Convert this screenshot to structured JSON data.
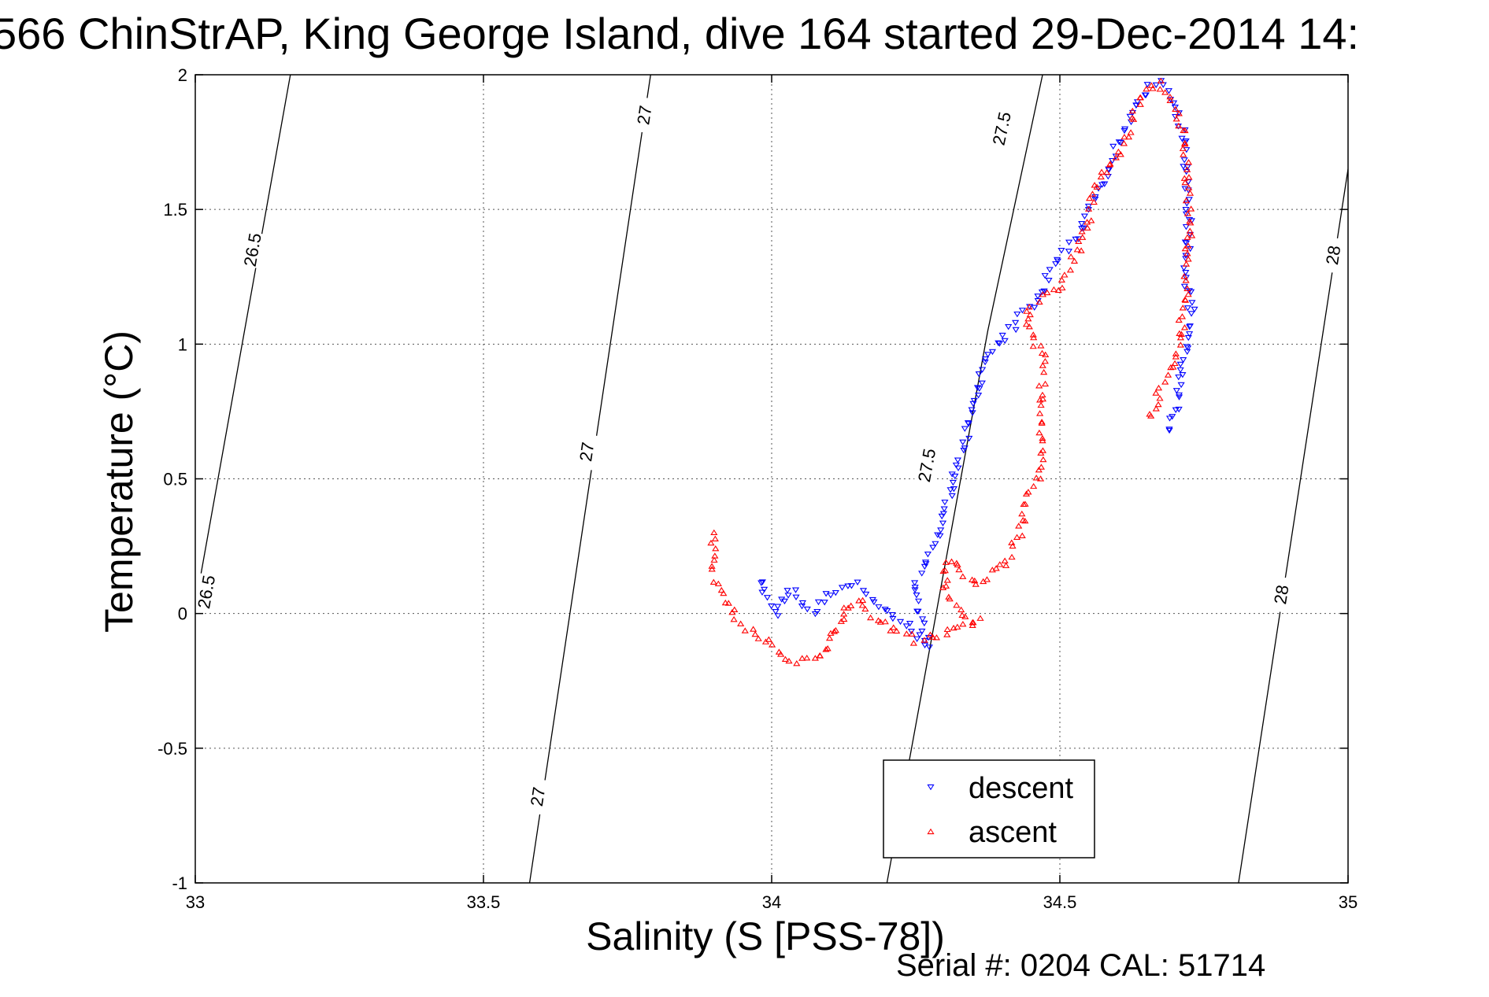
{
  "chart_data": {
    "type": "scatter",
    "title": "566 ChinStrAP, King George Island, dive 164 started 29-Dec-2014 14:",
    "xlabel": "Salinity (S [PSS-78])",
    "ylabel": "Temperature (°C)",
    "xlim": [
      33,
      35
    ],
    "ylim": [
      -1,
      2
    ],
    "xticks": [
      "33",
      "33.5",
      "34",
      "34.5",
      "35"
    ],
    "yticks": [
      "-1",
      "-0.5",
      "0",
      "0.5",
      "1",
      "1.5",
      "2"
    ],
    "grid": true,
    "legend_position": "bottom-right",
    "footer": "Serial #: 0204  CAL: 51714",
    "isopycnals": [
      {
        "label": "26.5",
        "points": [
          [
            32.985,
            -0.15
          ],
          [
            33.165,
            2.0
          ]
        ],
        "label_at": [
          [
            33.1,
            1.35
          ],
          [
            33.02,
            0.08
          ]
        ]
      },
      {
        "label": "27",
        "points": [
          [
            33.58,
            -1.0
          ],
          [
            33.79,
            2.0
          ]
        ],
        "label_at": [
          [
            33.78,
            1.85
          ],
          [
            33.68,
            0.6
          ],
          [
            33.595,
            -0.68
          ]
        ]
      },
      {
        "label": "27.5",
        "points": [
          [
            34.2,
            -1.0
          ],
          [
            34.375,
            1.05
          ],
          [
            34.47,
            2.0
          ]
        ],
        "label_at": [
          [
            34.4,
            1.8
          ],
          [
            34.27,
            0.55
          ]
        ]
      },
      {
        "label": "28",
        "points": [
          [
            34.81,
            -1.0
          ],
          [
            35.0,
            1.65
          ]
        ],
        "label_at": [
          [
            34.975,
            1.33
          ],
          [
            34.885,
            0.07
          ]
        ]
      }
    ],
    "series": [
      {
        "name": "descent",
        "color": "#0000ff",
        "marker": "triangle-down",
        "path": [
          [
            33.98,
            0.12
          ],
          [
            33.99,
            0.05
          ],
          [
            34.01,
            0.0
          ],
          [
            34.03,
            0.09
          ],
          [
            34.05,
            0.05
          ],
          [
            34.07,
            0.0
          ],
          [
            34.1,
            0.08
          ],
          [
            34.13,
            0.11
          ],
          [
            34.16,
            0.1
          ],
          [
            34.2,
            0.0
          ],
          [
            34.24,
            -0.05
          ],
          [
            34.27,
            -0.13
          ],
          [
            34.25,
            0.1
          ],
          [
            34.27,
            0.2
          ],
          [
            34.29,
            0.3
          ],
          [
            34.31,
            0.45
          ],
          [
            34.33,
            0.6
          ],
          [
            34.35,
            0.75
          ],
          [
            34.37,
            0.95
          ],
          [
            34.4,
            1.02
          ],
          [
            34.43,
            1.1
          ],
          [
            34.46,
            1.15
          ],
          [
            34.48,
            1.25
          ],
          [
            34.5,
            1.32
          ],
          [
            34.53,
            1.4
          ],
          [
            34.55,
            1.5
          ],
          [
            34.57,
            1.57
          ],
          [
            34.59,
            1.68
          ],
          [
            34.61,
            1.78
          ],
          [
            34.63,
            1.88
          ],
          [
            34.65,
            1.94
          ],
          [
            34.67,
            1.97
          ],
          [
            34.69,
            1.92
          ],
          [
            34.71,
            1.82
          ],
          [
            34.72,
            1.65
          ],
          [
            34.725,
            1.45
          ],
          [
            34.72,
            1.25
          ],
          [
            34.73,
            1.1
          ],
          [
            34.72,
            0.98
          ],
          [
            34.705,
            0.85
          ],
          [
            34.7,
            0.75
          ],
          [
            34.69,
            0.68
          ]
        ]
      },
      {
        "name": "ascent",
        "color": "#ff0000",
        "marker": "triangle-up",
        "path": [
          [
            34.66,
            0.73
          ],
          [
            34.67,
            0.82
          ],
          [
            34.69,
            0.9
          ],
          [
            34.7,
            0.96
          ],
          [
            34.71,
            1.05
          ],
          [
            34.72,
            1.22
          ],
          [
            34.725,
            1.45
          ],
          [
            34.72,
            1.65
          ],
          [
            34.71,
            1.82
          ],
          [
            34.69,
            1.92
          ],
          [
            34.67,
            1.97
          ],
          [
            34.65,
            1.94
          ],
          [
            34.63,
            1.86
          ],
          [
            34.61,
            1.76
          ],
          [
            34.6,
            1.7
          ],
          [
            34.58,
            1.64
          ],
          [
            34.56,
            1.6
          ],
          [
            34.55,
            1.45
          ],
          [
            34.54,
            1.4
          ],
          [
            34.52,
            1.3
          ],
          [
            34.5,
            1.22
          ],
          [
            34.47,
            1.17
          ],
          [
            34.45,
            1.15
          ],
          [
            34.44,
            1.08
          ],
          [
            34.47,
            0.95
          ],
          [
            34.47,
            0.7
          ],
          [
            34.47,
            0.55
          ],
          [
            34.45,
            0.45
          ],
          [
            34.43,
            0.3
          ],
          [
            34.41,
            0.2
          ],
          [
            34.38,
            0.15
          ],
          [
            34.36,
            0.12
          ],
          [
            34.33,
            0.16
          ],
          [
            34.31,
            0.2
          ],
          [
            34.3,
            0.13
          ],
          [
            34.31,
            0.05
          ],
          [
            34.33,
            0.0
          ],
          [
            34.36,
            -0.03
          ],
          [
            34.3,
            -0.07
          ],
          [
            34.25,
            -0.1
          ],
          [
            34.22,
            -0.07
          ],
          [
            34.18,
            -0.02
          ],
          [
            34.15,
            0.05
          ],
          [
            34.13,
            0.02
          ],
          [
            34.1,
            -0.12
          ],
          [
            34.07,
            -0.18
          ],
          [
            34.03,
            -0.17
          ],
          [
            34.0,
            -0.12
          ],
          [
            33.97,
            -0.08
          ],
          [
            33.94,
            -0.03
          ],
          [
            33.92,
            0.05
          ],
          [
            33.9,
            0.15
          ],
          [
            33.9,
            0.3
          ]
        ]
      }
    ]
  }
}
